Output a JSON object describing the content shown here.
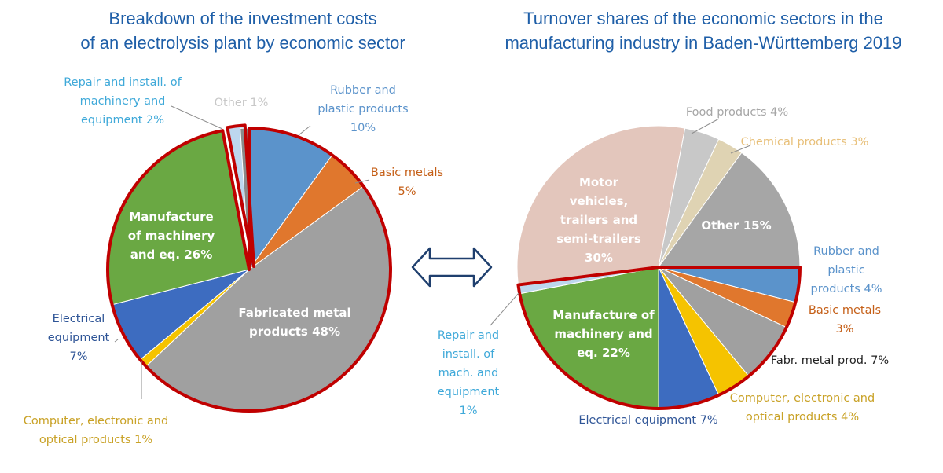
{
  "chart_data": [
    {
      "type": "pie",
      "title": [
        "Breakdown of the investment costs",
        "of an electrolysis plant by economic sector"
      ],
      "slices": [
        {
          "label": [
            "Rubber and",
            "plastic products",
            "10%"
          ],
          "value": 10,
          "color": "#5b93cb",
          "label_color": "#5b93cb",
          "inside": false
        },
        {
          "label": [
            "Basic metals",
            "5%"
          ],
          "value": 5,
          "color": "#e0772d",
          "label_color": "#c55f17",
          "inside": false
        },
        {
          "label": [
            "Fabricated metal",
            "products 48%"
          ],
          "value": 48,
          "color": "#a0a0a0",
          "label_color": "#ffffff",
          "inside": true
        },
        {
          "label": [
            "Computer, electronic and",
            "optical products 1%"
          ],
          "value": 1,
          "color": "#f5c300",
          "label_color": "#c9a227",
          "inside": false
        },
        {
          "label": [
            "Electrical",
            "equipment",
            "7%"
          ],
          "value": 7,
          "color": "#3d6cc0",
          "label_color": "#2f5597",
          "inside": false
        },
        {
          "label": [
            "Manufacture",
            "of machinery",
            "and eq. 26%"
          ],
          "value": 26,
          "color": "#6aa843",
          "label_color": "#ffffff",
          "inside": true
        },
        {
          "label": [
            "Repair and install. of",
            "machinery and",
            "equipment 2%"
          ],
          "value": 2,
          "color": "#bdd7ee",
          "label_color": "#3fa9d9",
          "inside": false
        },
        {
          "label": [
            "Other 1%"
          ],
          "value": 1,
          "color": "#8a8a8a",
          "label_color": "#c8c8c8",
          "inside": false
        }
      ]
    },
    {
      "type": "pie",
      "title": [
        "Turnover shares of the economic sectors in the",
        "manufacturing industry in Baden-Württemberg 2019"
      ],
      "slices": [
        {
          "label": [
            "Rubber and",
            "plastic",
            "products 4%"
          ],
          "value": 4,
          "color": "#5b93cb",
          "label_color": "#5b93cb",
          "inside": false
        },
        {
          "label": [
            "Basic metals",
            "3%"
          ],
          "value": 3,
          "color": "#e0772d",
          "label_color": "#c55f17",
          "inside": false
        },
        {
          "label": [
            "Fabr. metal prod. 7%"
          ],
          "value": 7,
          "color": "#a0a0a0",
          "label_color": "#222222",
          "inside": false
        },
        {
          "label": [
            "Computer, electronic and",
            "optical products 4%"
          ],
          "value": 4,
          "color": "#f5c300",
          "label_color": "#c9a227",
          "inside": false
        },
        {
          "label": [
            "Electrical equipment 7%"
          ],
          "value": 7,
          "color": "#3d6cc0",
          "label_color": "#2f5597",
          "inside": false
        },
        {
          "label": [
            "Manufacture of",
            "machinery and",
            "eq. 22%"
          ],
          "value": 22,
          "color": "#6aa843",
          "label_color": "#ffffff",
          "inside": true
        },
        {
          "label": [
            "Repair and",
            "install. of",
            "mach. and",
            "equipment",
            "1%"
          ],
          "value": 1,
          "color": "#bdd7ee",
          "label_color": "#3fa9d9",
          "inside": false
        },
        {
          "label": [
            "Motor",
            "vehicles,",
            "trailers and",
            "semi-trailers",
            "30%"
          ],
          "value": 30,
          "color": "#e3c6bc",
          "label_color": "#ffffff",
          "inside": true
        },
        {
          "label": [
            "Food products 4%"
          ],
          "value": 4,
          "color": "#c8c8c8",
          "label_color": "#a6a6a6",
          "inside": false
        },
        {
          "label": [
            "Chemical products 3%"
          ],
          "value": 3,
          "color": "#dfd3b3",
          "label_color": "#e8c07a",
          "inside": false
        },
        {
          "label": [
            "Other 15%"
          ],
          "value": 15,
          "color": "#a6a6a6",
          "label_color": "#ffffff",
          "inside": true
        }
      ]
    }
  ],
  "connector": {
    "icon": "double-arrow-icon"
  }
}
